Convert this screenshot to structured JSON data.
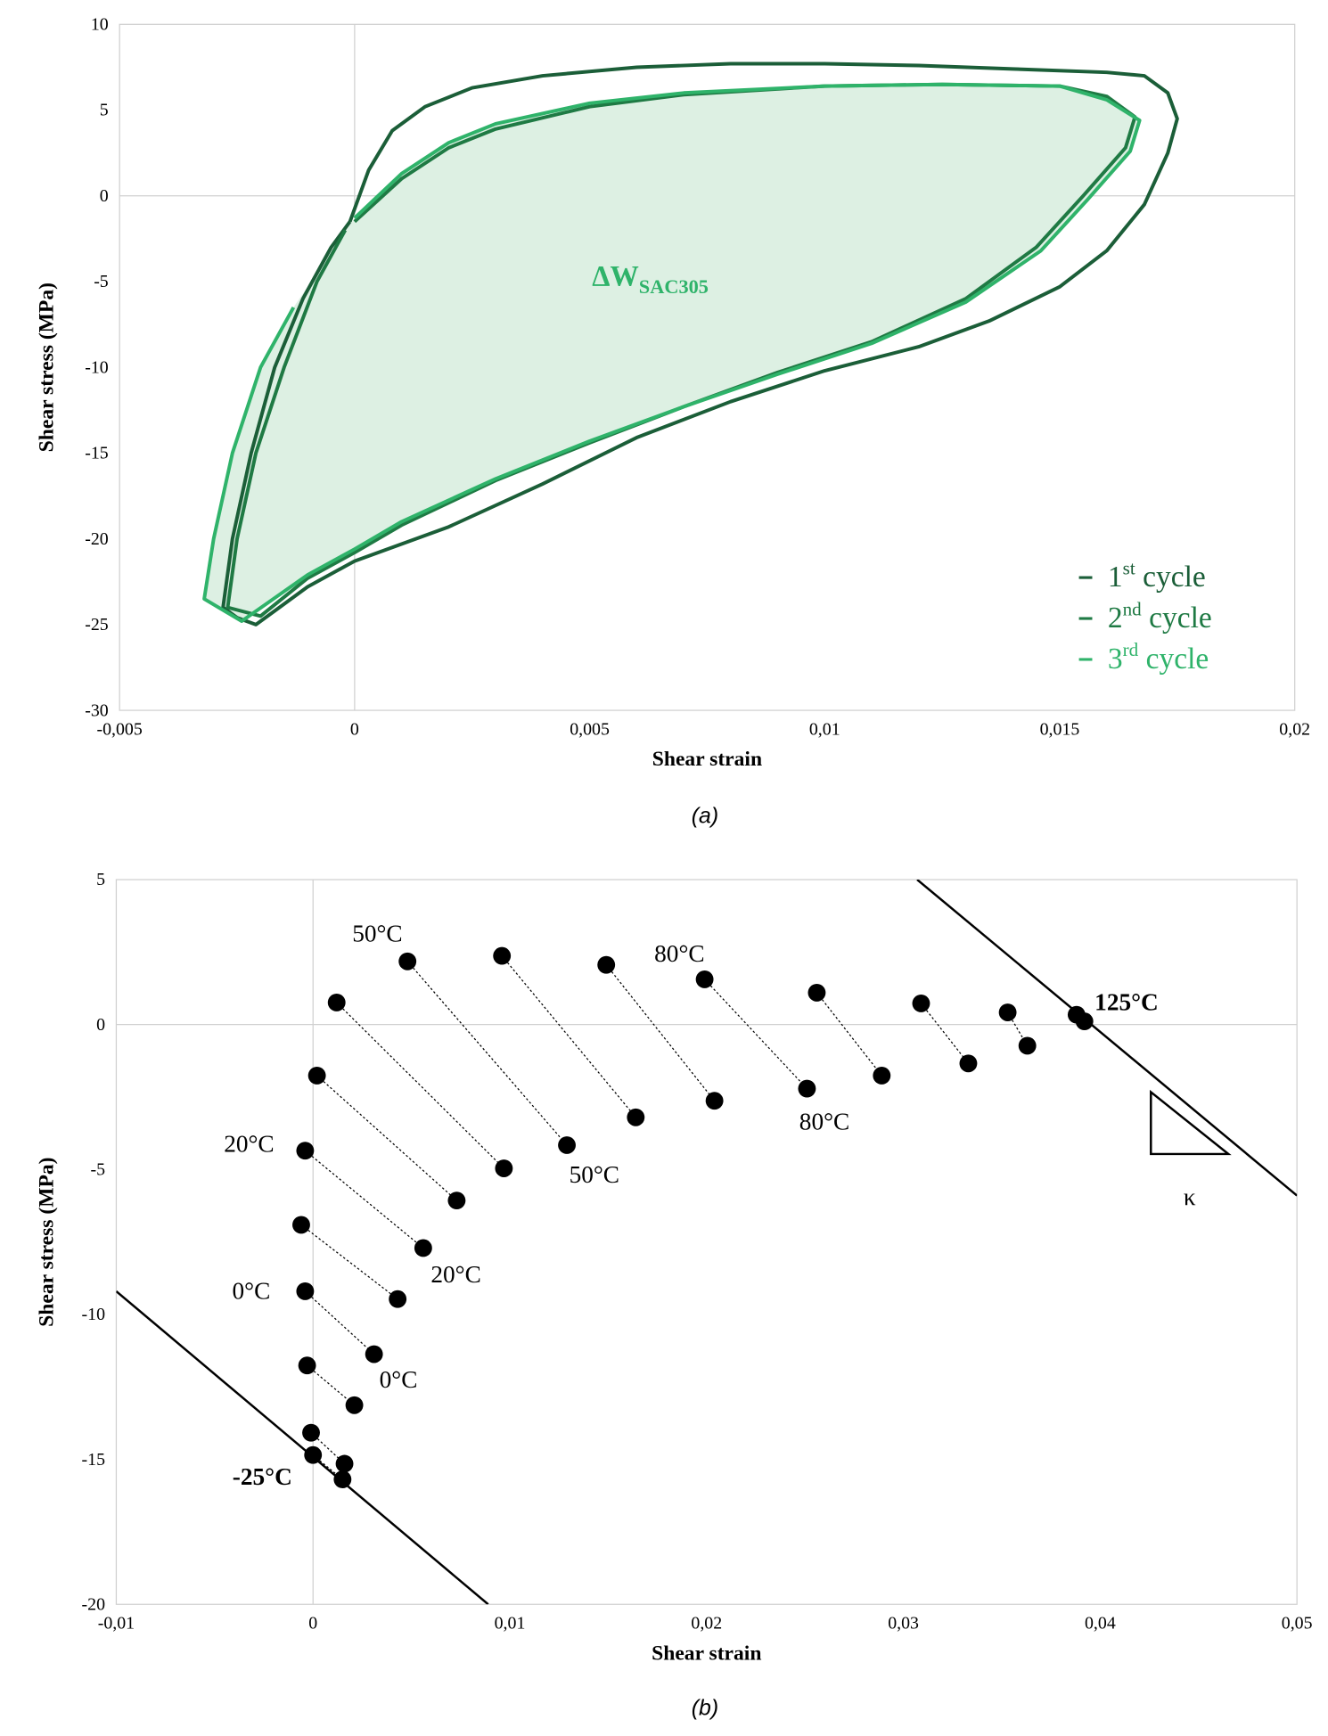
{
  "chart_data": [
    {
      "type": "line",
      "x_label": "Shear strain",
      "y_label": "Shear stress (MPa)",
      "caption": "(a)",
      "xlim": [
        -0.005,
        0.02
      ],
      "xticks": [
        {
          "value": -0.005,
          "label": "-0,005"
        },
        0,
        {
          "value": 0.005,
          "label": "0,005"
        },
        {
          "value": 0.01,
          "label": "0,01"
        },
        {
          "value": 0.015,
          "label": "0,015"
        },
        {
          "value": 0.02,
          "label": "0,02"
        }
      ],
      "ylim": [
        -30,
        10
      ],
      "yticks": [
        -30,
        -25,
        -20,
        -15,
        -10,
        -5,
        0,
        5,
        10
      ],
      "zero_lines": true,
      "legend": "lower right",
      "annotation": {
        "text": "ΔW",
        "subscript": "SAC305"
      },
      "series": [
        {
          "name": "1st cycle",
          "color": "#1b5e38",
          "x": [
            -0.0001,
            0.0003,
            0.0008,
            0.0015,
            0.0025,
            0.004,
            0.006,
            0.008,
            0.01,
            0.012,
            0.014,
            0.016,
            0.0168,
            0.0173,
            0.0175,
            0.0173,
            0.0168,
            0.016,
            0.015,
            0.0135,
            0.012,
            0.01,
            0.008,
            0.006,
            0.004,
            0.002,
            0,
            -0.001,
            -0.0017,
            -0.0021,
            -0.0025,
            -0.0028,
            -0.0026,
            -0.0022,
            -0.0017,
            -0.0011,
            -0.0005,
            -0.0001
          ],
          "y": [
            -1.5,
            1.5,
            3.8,
            5.2,
            6.3,
            7.0,
            7.5,
            7.7,
            7.7,
            7.6,
            7.4,
            7.2,
            7.0,
            6.0,
            4.5,
            2.5,
            -0.5,
            -3.2,
            -5.3,
            -7.3,
            -8.8,
            -10.2,
            -12,
            -14.1,
            -16.8,
            -19.3,
            -21.3,
            -22.8,
            -24.2,
            -25,
            -24.6,
            -24,
            -20,
            -15,
            -10,
            -6,
            -3,
            -1.5
          ]
        },
        {
          "name": "2nd cycle",
          "color": "#1f7a44",
          "x": [
            0,
            0.001,
            0.002,
            0.003,
            0.005,
            0.007,
            0.01,
            0.0125,
            0.015,
            0.016,
            0.0166,
            0.0164,
            0.0155,
            0.0145,
            0.013,
            0.011,
            0.009,
            0.007,
            0.005,
            0.003,
            0.001,
            0,
            -0.001,
            -0.002,
            -0.0027,
            -0.0025,
            -0.0021,
            -0.0015,
            -0.0008,
            -0.0002
          ],
          "y": [
            -1.5,
            1.0,
            2.8,
            3.9,
            5.2,
            5.9,
            6.4,
            6.5,
            6.4,
            5.8,
            4.6,
            2.8,
            0,
            -3,
            -6,
            -8.5,
            -10.3,
            -12.3,
            -14.4,
            -16.6,
            -19.2,
            -20.8,
            -22.3,
            -24.5,
            -24,
            -20,
            -15,
            -10,
            -5,
            -2
          ]
        },
        {
          "name": "3rd cycle",
          "color": "#2fb36a",
          "fill": "#ddf0e3",
          "x": [
            0,
            0.001,
            0.002,
            0.003,
            0.005,
            0.007,
            0.01,
            0.0125,
            0.015,
            0.016,
            0.0167,
            0.0165,
            0.0156,
            0.0146,
            0.013,
            0.011,
            0.009,
            0.007,
            0.005,
            0.003,
            0.001,
            0,
            -0.001,
            -0.0024,
            -0.0032,
            -0.003,
            -0.0026,
            -0.002,
            -0.0013
          ],
          "y": [
            -1.3,
            1.3,
            3.1,
            4.2,
            5.4,
            6.0,
            6.4,
            6.5,
            6.4,
            5.6,
            4.4,
            2.6,
            -0.2,
            -3.2,
            -6.2,
            -8.6,
            -10.4,
            -12.3,
            -14.3,
            -16.5,
            -19.0,
            -20.6,
            -22.1,
            -24.8,
            -23.5,
            -20,
            -15,
            -10,
            -6.5
          ]
        }
      ]
    },
    {
      "type": "scatter",
      "x_label": "Shear strain",
      "y_label": "Shear stress (MPa)",
      "caption": "(b)",
      "xlim": [
        -0.01,
        0.05
      ],
      "xticks": [
        {
          "value": -0.01,
          "label": "-0,01"
        },
        0,
        {
          "value": 0.01,
          "label": "0,01"
        },
        {
          "value": 0.02,
          "label": "0,02"
        },
        {
          "value": 0.03,
          "label": "0,03"
        },
        {
          "value": 0.04,
          "label": "0,04"
        },
        {
          "value": 0.05,
          "label": "0,05"
        }
      ],
      "ylim": [
        -20,
        5
      ],
      "yticks": [
        -20,
        -15,
        -10,
        -5,
        0,
        5
      ],
      "zero_lines": true,
      "color": "#000000",
      "x_start": [
        0.0012,
        0.0048,
        0.0096,
        0.0149,
        0.0199,
        0.0256,
        0.0309,
        0.0353,
        0.0388,
        0.0002,
        -0.0004,
        -0.0006,
        -0.0004,
        -0.0003,
        -0.0001,
        0
      ],
      "y_start": [
        0.76,
        2.18,
        2.37,
        2.06,
        1.56,
        1.1,
        0.73,
        0.42,
        0.34,
        -1.76,
        -4.35,
        -6.91,
        -9.2,
        -11.76,
        -14.08,
        -14.85
      ],
      "x_end": [
        0.0097,
        0.0129,
        0.0164,
        0.0204,
        0.0251,
        0.0289,
        0.0333,
        0.0363,
        0.0392,
        0.0073,
        0.0056,
        0.0043,
        0.0031,
        0.0021,
        0.0016,
        0.0015
      ],
      "y_end": [
        -4.96,
        -4.16,
        -3.2,
        -2.63,
        -2.21,
        -1.76,
        -1.34,
        -0.73,
        0.11,
        -6.07,
        -7.71,
        -9.47,
        -11.37,
        -13.13,
        -15.15,
        -15.69
      ],
      "lines": [
        {
          "x": [
            -0.01,
            0.0089
          ],
          "y": [
            -9.2,
            -20
          ]
        },
        {
          "x": [
            0.0307,
            0.05
          ],
          "y": [
            5,
            -5.9
          ]
        }
      ],
      "annotations": [
        "50°C",
        "80°C",
        "20°C",
        "0°C",
        "50°C",
        "80°C",
        "20°C",
        "0°C",
        "-25°C",
        "125°C",
        "κ"
      ]
    }
  ]
}
